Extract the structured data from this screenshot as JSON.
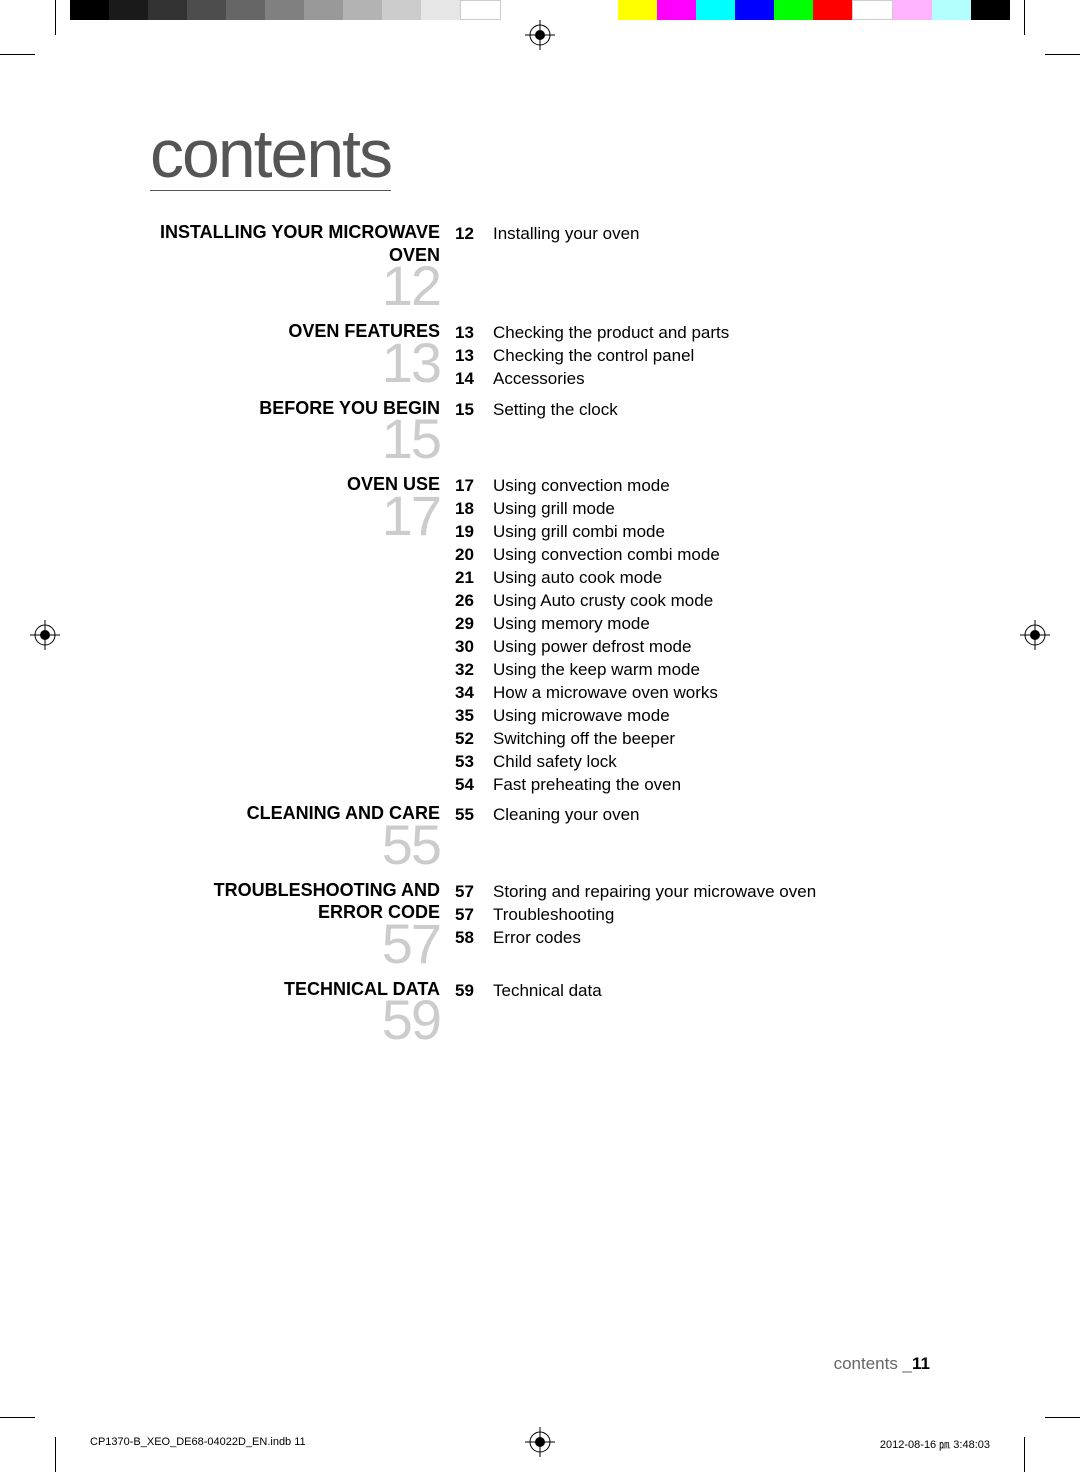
{
  "colorBar": {
    "leftColors": [
      "#000000",
      "#1a1a1a",
      "#333333",
      "#4d4d4d",
      "#666666",
      "#808080",
      "#999999",
      "#b3b3b3",
      "#cccccc",
      "#e6e6e6",
      "#ffffff"
    ],
    "rightColors": [
      "#ffff00",
      "#ff00ff",
      "#00ffff",
      "#0000ff",
      "#00ff00",
      "#ff0000",
      "#ffffff",
      "#ffb3ff",
      "#b3ffff",
      "#000000"
    ]
  },
  "pageTitle": "contents",
  "sections": [
    {
      "title": "INSTALLING YOUR MICROWAVE OVEN",
      "number": "12",
      "items": [
        {
          "page": "12",
          "title": "Installing your oven"
        }
      ]
    },
    {
      "title": "OVEN FEATURES",
      "number": "13",
      "items": [
        {
          "page": "13",
          "title": "Checking the product and parts"
        },
        {
          "page": "13",
          "title": "Checking the control panel"
        },
        {
          "page": "14",
          "title": "Accessories"
        }
      ]
    },
    {
      "title": "BEFORE YOU BEGIN",
      "number": "15",
      "items": [
        {
          "page": "15",
          "title": "Setting the clock"
        }
      ]
    },
    {
      "title": "OVEN USE",
      "number": "17",
      "items": [
        {
          "page": "17",
          "title": "Using convection mode"
        },
        {
          "page": "18",
          "title": "Using grill mode"
        },
        {
          "page": "19",
          "title": "Using grill combi mode"
        },
        {
          "page": "20",
          "title": "Using convection combi mode"
        },
        {
          "page": "21",
          "title": "Using auto cook mode"
        },
        {
          "page": "26",
          "title": "Using Auto crusty cook mode"
        },
        {
          "page": "29",
          "title": "Using memory mode"
        },
        {
          "page": "30",
          "title": "Using power defrost mode"
        },
        {
          "page": "32",
          "title": "Using the keep warm mode"
        },
        {
          "page": "34",
          "title": "How a microwave oven works"
        },
        {
          "page": "35",
          "title": "Using microwave mode"
        },
        {
          "page": "52",
          "title": "Switching off the beeper"
        },
        {
          "page": "53",
          "title": "Child safety lock"
        },
        {
          "page": "54",
          "title": "Fast preheating the oven"
        }
      ]
    },
    {
      "title": "CLEANING AND CARE",
      "number": "55",
      "items": [
        {
          "page": "55",
          "title": "Cleaning your oven"
        }
      ]
    },
    {
      "title": "TROUBLESHOOTING AND ERROR CODE",
      "number": "57",
      "items": [
        {
          "page": "57",
          "title": "Storing and repairing your microwave oven"
        },
        {
          "page": "57",
          "title": "Troubleshooting"
        },
        {
          "page": "58",
          "title": "Error codes"
        }
      ]
    },
    {
      "title": "TECHNICAL DATA",
      "number": "59",
      "items": [
        {
          "page": "59",
          "title": "Technical data"
        }
      ]
    }
  ],
  "footer": {
    "label": "contents _",
    "pageNum": "11"
  },
  "printFooter": {
    "left": "CP1370-B_XEO_DE68-04022D_EN.indb   11",
    "right": "2012-08-16   ㏘ 3:48:03"
  }
}
